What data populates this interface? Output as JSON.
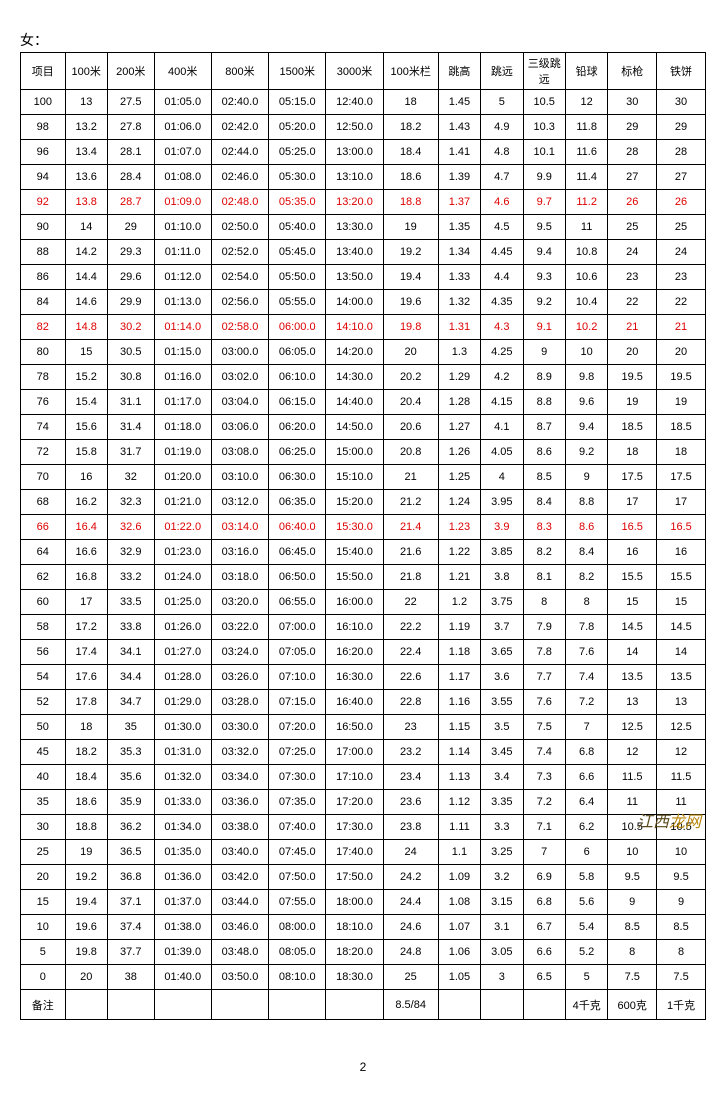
{
  "title": "女：",
  "page_number": "2",
  "watermark": {
    "part1": "江西",
    "part2": "龙网"
  },
  "headers": [
    "项目",
    "100米",
    "200米",
    "400米",
    "800米",
    "1500米",
    "3000米",
    "100米栏",
    "跳高",
    "跳远",
    "三级跳远",
    "铅球",
    "标枪",
    "铁饼"
  ],
  "red_rows": [
    4,
    9,
    17
  ],
  "footer_label": "备注",
  "footer_cells": [
    "",
    "",
    "",
    "",
    "",
    "",
    "8.5/84",
    "",
    "",
    "",
    "4千克",
    "600克",
    "1千克"
  ],
  "rows": [
    [
      "100",
      "13",
      "27.5",
      "01:05.0",
      "02:40.0",
      "05:15.0",
      "12:40.0",
      "18",
      "1.45",
      "5",
      "10.5",
      "12",
      "30",
      "30"
    ],
    [
      "98",
      "13.2",
      "27.8",
      "01:06.0",
      "02:42.0",
      "05:20.0",
      "12:50.0",
      "18.2",
      "1.43",
      "4.9",
      "10.3",
      "11.8",
      "29",
      "29"
    ],
    [
      "96",
      "13.4",
      "28.1",
      "01:07.0",
      "02:44.0",
      "05:25.0",
      "13:00.0",
      "18.4",
      "1.41",
      "4.8",
      "10.1",
      "11.6",
      "28",
      "28"
    ],
    [
      "94",
      "13.6",
      "28.4",
      "01:08.0",
      "02:46.0",
      "05:30.0",
      "13:10.0",
      "18.6",
      "1.39",
      "4.7",
      "9.9",
      "11.4",
      "27",
      "27"
    ],
    [
      "92",
      "13.8",
      "28.7",
      "01:09.0",
      "02:48.0",
      "05:35.0",
      "13:20.0",
      "18.8",
      "1.37",
      "4.6",
      "9.7",
      "11.2",
      "26",
      "26"
    ],
    [
      "90",
      "14",
      "29",
      "01:10.0",
      "02:50.0",
      "05:40.0",
      "13:30.0",
      "19",
      "1.35",
      "4.5",
      "9.5",
      "11",
      "25",
      "25"
    ],
    [
      "88",
      "14.2",
      "29.3",
      "01:11.0",
      "02:52.0",
      "05:45.0",
      "13:40.0",
      "19.2",
      "1.34",
      "4.45",
      "9.4",
      "10.8",
      "24",
      "24"
    ],
    [
      "86",
      "14.4",
      "29.6",
      "01:12.0",
      "02:54.0",
      "05:50.0",
      "13:50.0",
      "19.4",
      "1.33",
      "4.4",
      "9.3",
      "10.6",
      "23",
      "23"
    ],
    [
      "84",
      "14.6",
      "29.9",
      "01:13.0",
      "02:56.0",
      "05:55.0",
      "14:00.0",
      "19.6",
      "1.32",
      "4.35",
      "9.2",
      "10.4",
      "22",
      "22"
    ],
    [
      "82",
      "14.8",
      "30.2",
      "01:14.0",
      "02:58.0",
      "06:00.0",
      "14:10.0",
      "19.8",
      "1.31",
      "4.3",
      "9.1",
      "10.2",
      "21",
      "21"
    ],
    [
      "80",
      "15",
      "30.5",
      "01:15.0",
      "03:00.0",
      "06:05.0",
      "14:20.0",
      "20",
      "1.3",
      "4.25",
      "9",
      "10",
      "20",
      "20"
    ],
    [
      "78",
      "15.2",
      "30.8",
      "01:16.0",
      "03:02.0",
      "06:10.0",
      "14:30.0",
      "20.2",
      "1.29",
      "4.2",
      "8.9",
      "9.8",
      "19.5",
      "19.5"
    ],
    [
      "76",
      "15.4",
      "31.1",
      "01:17.0",
      "03:04.0",
      "06:15.0",
      "14:40.0",
      "20.4",
      "1.28",
      "4.15",
      "8.8",
      "9.6",
      "19",
      "19"
    ],
    [
      "74",
      "15.6",
      "31.4",
      "01:18.0",
      "03:06.0",
      "06:20.0",
      "14:50.0",
      "20.6",
      "1.27",
      "4.1",
      "8.7",
      "9.4",
      "18.5",
      "18.5"
    ],
    [
      "72",
      "15.8",
      "31.7",
      "01:19.0",
      "03:08.0",
      "06:25.0",
      "15:00.0",
      "20.8",
      "1.26",
      "4.05",
      "8.6",
      "9.2",
      "18",
      "18"
    ],
    [
      "70",
      "16",
      "32",
      "01:20.0",
      "03:10.0",
      "06:30.0",
      "15:10.0",
      "21",
      "1.25",
      "4",
      "8.5",
      "9",
      "17.5",
      "17.5"
    ],
    [
      "68",
      "16.2",
      "32.3",
      "01:21.0",
      "03:12.0",
      "06:35.0",
      "15:20.0",
      "21.2",
      "1.24",
      "3.95",
      "8.4",
      "8.8",
      "17",
      "17"
    ],
    [
      "66",
      "16.4",
      "32.6",
      "01:22.0",
      "03:14.0",
      "06:40.0",
      "15:30.0",
      "21.4",
      "1.23",
      "3.9",
      "8.3",
      "8.6",
      "16.5",
      "16.5"
    ],
    [
      "64",
      "16.6",
      "32.9",
      "01:23.0",
      "03:16.0",
      "06:45.0",
      "15:40.0",
      "21.6",
      "1.22",
      "3.85",
      "8.2",
      "8.4",
      "16",
      "16"
    ],
    [
      "62",
      "16.8",
      "33.2",
      "01:24.0",
      "03:18.0",
      "06:50.0",
      "15:50.0",
      "21.8",
      "1.21",
      "3.8",
      "8.1",
      "8.2",
      "15.5",
      "15.5"
    ],
    [
      "60",
      "17",
      "33.5",
      "01:25.0",
      "03:20.0",
      "06:55.0",
      "16:00.0",
      "22",
      "1.2",
      "3.75",
      "8",
      "8",
      "15",
      "15"
    ],
    [
      "58",
      "17.2",
      "33.8",
      "01:26.0",
      "03:22.0",
      "07:00.0",
      "16:10.0",
      "22.2",
      "1.19",
      "3.7",
      "7.9",
      "7.8",
      "14.5",
      "14.5"
    ],
    [
      "56",
      "17.4",
      "34.1",
      "01:27.0",
      "03:24.0",
      "07:05.0",
      "16:20.0",
      "22.4",
      "1.18",
      "3.65",
      "7.8",
      "7.6",
      "14",
      "14"
    ],
    [
      "54",
      "17.6",
      "34.4",
      "01:28.0",
      "03:26.0",
      "07:10.0",
      "16:30.0",
      "22.6",
      "1.17",
      "3.6",
      "7.7",
      "7.4",
      "13.5",
      "13.5"
    ],
    [
      "52",
      "17.8",
      "34.7",
      "01:29.0",
      "03:28.0",
      "07:15.0",
      "16:40.0",
      "22.8",
      "1.16",
      "3.55",
      "7.6",
      "7.2",
      "13",
      "13"
    ],
    [
      "50",
      "18",
      "35",
      "01:30.0",
      "03:30.0",
      "07:20.0",
      "16:50.0",
      "23",
      "1.15",
      "3.5",
      "7.5",
      "7",
      "12.5",
      "12.5"
    ],
    [
      "45",
      "18.2",
      "35.3",
      "01:31.0",
      "03:32.0",
      "07:25.0",
      "17:00.0",
      "23.2",
      "1.14",
      "3.45",
      "7.4",
      "6.8",
      "12",
      "12"
    ],
    [
      "40",
      "18.4",
      "35.6",
      "01:32.0",
      "03:34.0",
      "07:30.0",
      "17:10.0",
      "23.4",
      "1.13",
      "3.4",
      "7.3",
      "6.6",
      "11.5",
      "11.5"
    ],
    [
      "35",
      "18.6",
      "35.9",
      "01:33.0",
      "03:36.0",
      "07:35.0",
      "17:20.0",
      "23.6",
      "1.12",
      "3.35",
      "7.2",
      "6.4",
      "11",
      "11"
    ],
    [
      "30",
      "18.8",
      "36.2",
      "01:34.0",
      "03:38.0",
      "07:40.0",
      "17:30.0",
      "23.8",
      "1.11",
      "3.3",
      "7.1",
      "6.2",
      "10.5",
      "10.5"
    ],
    [
      "25",
      "19",
      "36.5",
      "01:35.0",
      "03:40.0",
      "07:45.0",
      "17:40.0",
      "24",
      "1.1",
      "3.25",
      "7",
      "6",
      "10",
      "10"
    ],
    [
      "20",
      "19.2",
      "36.8",
      "01:36.0",
      "03:42.0",
      "07:50.0",
      "17:50.0",
      "24.2",
      "1.09",
      "3.2",
      "6.9",
      "5.8",
      "9.5",
      "9.5"
    ],
    [
      "15",
      "19.4",
      "37.1",
      "01:37.0",
      "03:44.0",
      "07:55.0",
      "18:00.0",
      "24.4",
      "1.08",
      "3.15",
      "6.8",
      "5.6",
      "9",
      "9"
    ],
    [
      "10",
      "19.6",
      "37.4",
      "01:38.0",
      "03:46.0",
      "08:00.0",
      "18:10.0",
      "24.6",
      "1.07",
      "3.1",
      "6.7",
      "5.4",
      "8.5",
      "8.5"
    ],
    [
      "5",
      "19.8",
      "37.7",
      "01:39.0",
      "03:48.0",
      "08:05.0",
      "18:20.0",
      "24.8",
      "1.06",
      "3.05",
      "6.6",
      "5.2",
      "8",
      "8"
    ],
    [
      "0",
      "20",
      "38",
      "01:40.0",
      "03:50.0",
      "08:10.0",
      "18:30.0",
      "25",
      "1.05",
      "3",
      "6.5",
      "5",
      "7.5",
      "7.5"
    ]
  ]
}
